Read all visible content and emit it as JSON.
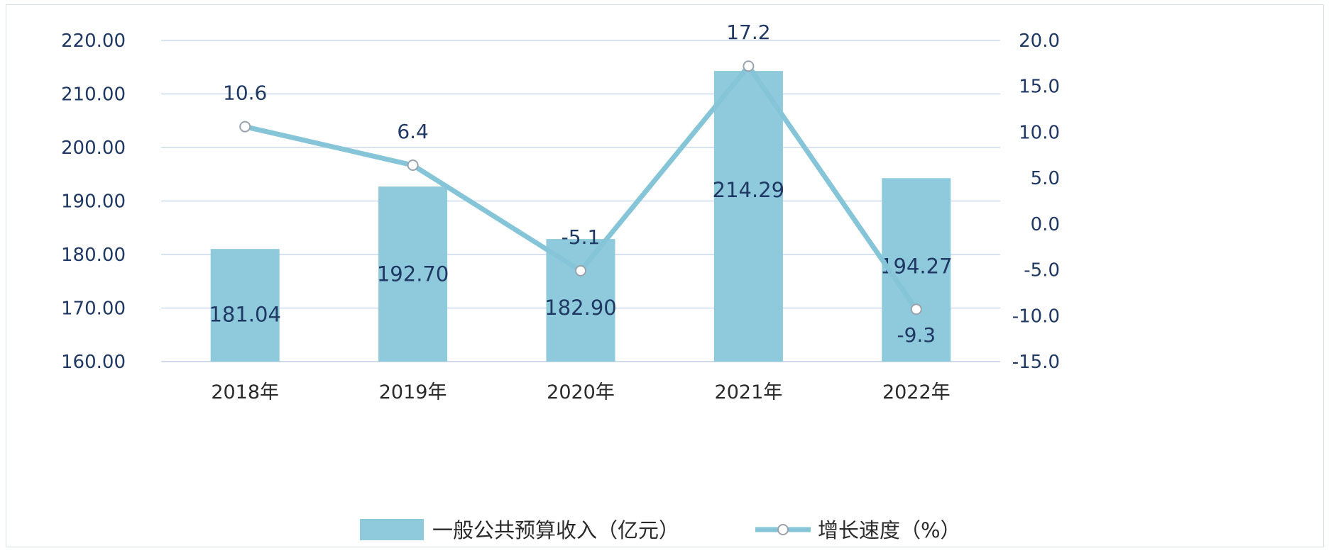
{
  "chart_data": {
    "type": "bar+line",
    "categories": [
      "2018年",
      "2019年",
      "2020年",
      "2021年",
      "2022年"
    ],
    "series": [
      {
        "name": "一般公共预算收入（亿元）",
        "type": "bar",
        "axis": "left",
        "values": [
          181.04,
          192.7,
          182.9,
          214.29,
          194.27
        ],
        "labels": [
          "181.04",
          "192.70",
          "182.90",
          "214.29",
          "194.27"
        ],
        "color": "#8ecadb"
      },
      {
        "name": "增长速度（%）",
        "type": "line",
        "axis": "right",
        "values": [
          10.6,
          6.4,
          -5.1,
          17.2,
          -9.3
        ],
        "labels": [
          "10.6",
          "6.4",
          "-5.1",
          "17.2",
          "-9.3"
        ],
        "color": "#86c5d8"
      }
    ],
    "y_left": {
      "min": 160,
      "max": 220,
      "step": 10,
      "ticks": [
        "220.00",
        "210.00",
        "200.00",
        "190.00",
        "180.00",
        "170.00",
        "160.00"
      ]
    },
    "y_right": {
      "min": -15,
      "max": 20,
      "step": 5,
      "ticks": [
        "20.0",
        "15.0",
        "10.0",
        "5.0",
        "0.0",
        "-5.0",
        "-10.0",
        "-15.0"
      ]
    },
    "grid": true,
    "legend": "bottom-center",
    "colors": {
      "grid": "#c9d9ea",
      "tick_text": "#1f3864",
      "axis_line": "#bfcfe0"
    }
  }
}
